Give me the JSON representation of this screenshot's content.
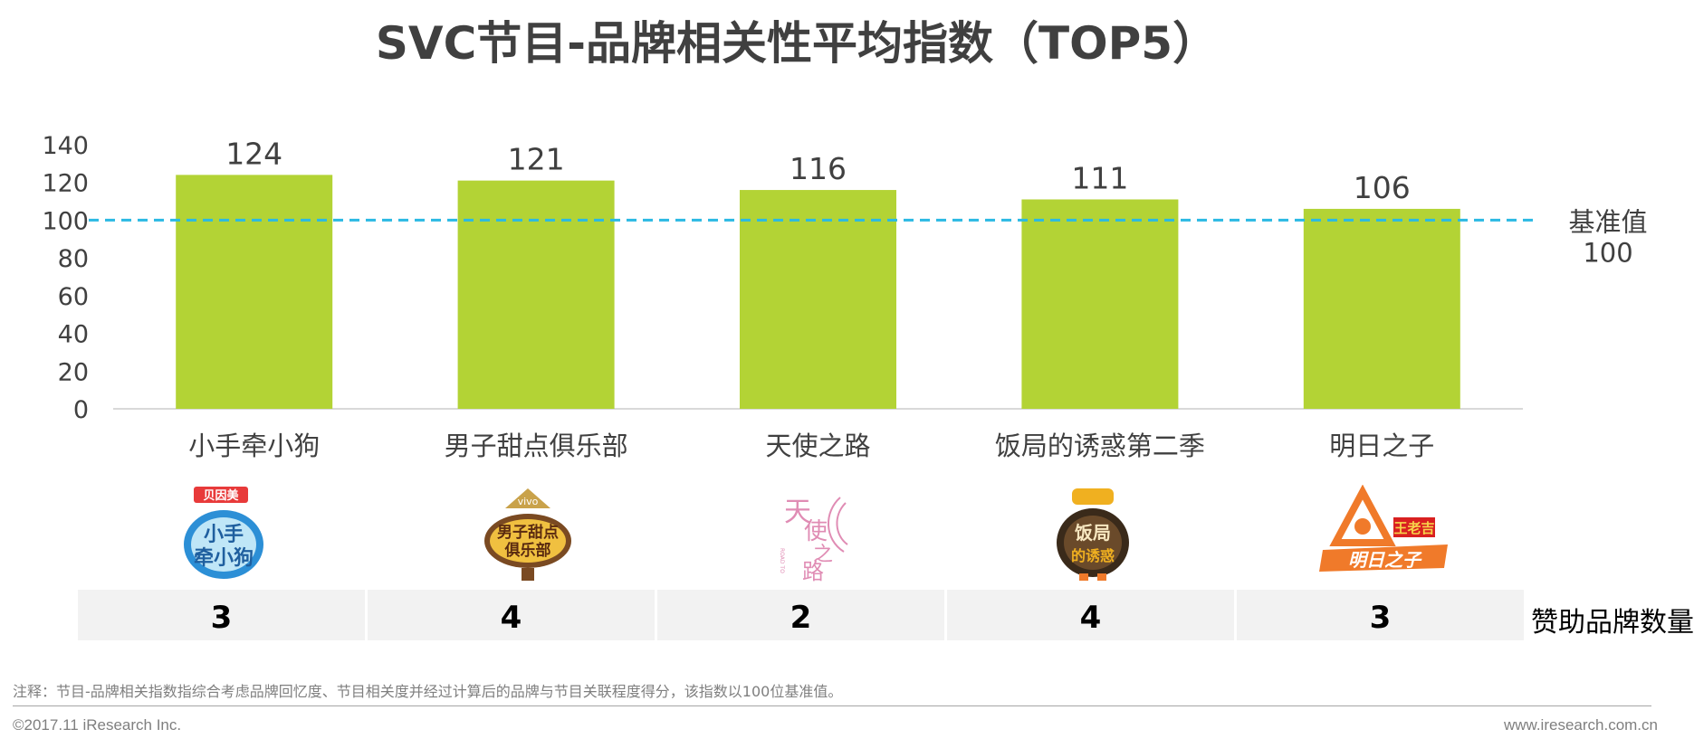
{
  "title": "SVC节目-品牌相关性平均指数（TOP5）",
  "chart_data": {
    "type": "bar",
    "title": "SVC节目-品牌相关性平均指数（TOP5）",
    "categories": [
      "小手牵小狗",
      "男子甜点俱乐部",
      "天使之路",
      "饭局的诱惑第二季",
      "明日之子"
    ],
    "values": [
      124,
      121,
      116,
      111,
      106
    ],
    "data_labels": [
      "124",
      "121",
      "116",
      "111",
      "106"
    ],
    "ylim": [
      0,
      140
    ],
    "yticks": [
      0,
      20,
      40,
      60,
      80,
      100,
      120,
      140
    ],
    "ytick_labels": [
      "0",
      "20",
      "40",
      "60",
      "80",
      "100",
      "120",
      "140"
    ],
    "reference_line": {
      "value": 100,
      "label_line1": "基准值",
      "label_line2": "100",
      "color": "#2ab9e3"
    },
    "bar_color": "#b3d335",
    "grid": false,
    "legend": "none"
  },
  "sponsor_counts": {
    "label": "赞助品牌数量",
    "values": [
      "3",
      "4",
      "2",
      "4",
      "3"
    ]
  },
  "logos": [
    {
      "icon": "xiaoshou-qian-xiaogou-logo-icon",
      "text": "小手牵小狗",
      "badge": "贝因美",
      "colors": [
        "#1f6fb5",
        "#e83a3a"
      ]
    },
    {
      "icon": "nanzi-tiandian-julebu-logo-icon",
      "text": "男子甜点俱乐部",
      "badge": "vivo",
      "colors": [
        "#7a4a22",
        "#f0c040"
      ]
    },
    {
      "icon": "tianshi-zhilu-logo-icon",
      "text": "天使之路",
      "badge": "ROAD TO THE RUNWAY",
      "colors": [
        "#e08cb4"
      ]
    },
    {
      "icon": "fanju-de-youhuo-logo-icon",
      "text": "饭局的诱惑",
      "badge": "",
      "colors": [
        "#3a2a1a",
        "#f0b020"
      ]
    },
    {
      "icon": "mingri-zhizi-logo-icon",
      "text": "明日之子",
      "badge": "王老吉",
      "colors": [
        "#f07a2a",
        "#d92020"
      ]
    }
  ],
  "footnote": "注释：节目-品牌相关指数指综合考虑品牌回忆度、节目相关度并经过计算后的品牌与节目关联程度得分，该指数以100位基准值。",
  "footer": {
    "copyright": "©2017.11 iResearch Inc.",
    "website": "www.iresearch.com.cn"
  }
}
